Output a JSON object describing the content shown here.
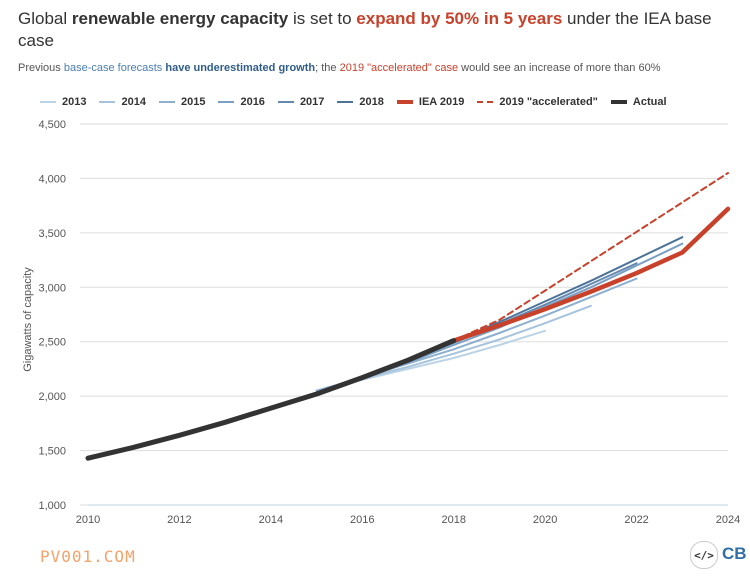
{
  "title": {
    "part1": "Global ",
    "bold1": "renewable energy capacity",
    "part2": " is set to ",
    "bold2": "expand by 50% in 5 years",
    "part3": " under the IEA base case"
  },
  "subtitle": {
    "part1": "Previous ",
    "blue1": "base-case forecasts",
    "blue2": "have underestimated growth",
    "part2": "; the ",
    "red1": "2019 \"accelerated\" case",
    "part3": "  would see an increase of more than 60%"
  },
  "footer": {
    "brand": "PV001.COM",
    "code_logo": "</>",
    "cb_logo": "CB"
  },
  "colors": {
    "f2013": "#bcd3e6",
    "f2014": "#a6c3dd",
    "f2015": "#8db0d1",
    "f2016": "#7a9fc4",
    "f2017": "#6389b1",
    "f2018": "#4d7399",
    "iea2019": "#c8412b",
    "accelerated": "#c8412b",
    "actual": "#333333"
  },
  "chart_data": {
    "type": "line",
    "ylabel": "Gigawatts of capacity",
    "xlim": [
      2010,
      2024
    ],
    "ylim": [
      1000,
      4500
    ],
    "x_ticks": [
      2010,
      2012,
      2014,
      2016,
      2018,
      2020,
      2022,
      2024
    ],
    "y_ticks": [
      1000,
      1500,
      2000,
      2500,
      3000,
      3500,
      4000,
      4500
    ],
    "y_tick_labels": [
      "1,000",
      "1,500",
      "2,000",
      "2,500",
      "3,000",
      "3,500",
      "4,000",
      "4,500"
    ],
    "grid": "horizontal",
    "legend_position": "top",
    "series": [
      {
        "name": "2013",
        "style": "solid",
        "x": [
          2015,
          2016,
          2017,
          2018,
          2019,
          2020
        ],
        "y": [
          2050,
          2150,
          2250,
          2350,
          2470,
          2600
        ]
      },
      {
        "name": "2014",
        "style": "solid",
        "x": [
          2015,
          2016,
          2017,
          2018,
          2019,
          2020,
          2021
        ],
        "y": [
          2050,
          2160,
          2270,
          2390,
          2520,
          2670,
          2830
        ]
      },
      {
        "name": "2015",
        "style": "solid",
        "x": [
          2015,
          2016,
          2017,
          2018,
          2019,
          2020,
          2021,
          2022
        ],
        "y": [
          2050,
          2170,
          2300,
          2430,
          2580,
          2740,
          2910,
          3080
        ]
      },
      {
        "name": "2016",
        "style": "solid",
        "x": [
          2016,
          2017,
          2018,
          2019,
          2020,
          2021,
          2022,
          2023
        ],
        "y": [
          2170,
          2310,
          2470,
          2630,
          2820,
          3000,
          3200,
          3400
        ]
      },
      {
        "name": "2017",
        "style": "solid",
        "x": [
          2017,
          2018,
          2019,
          2020,
          2021,
          2022
        ],
        "y": [
          2330,
          2490,
          2660,
          2840,
          3030,
          3220
        ]
      },
      {
        "name": "2018",
        "style": "solid",
        "x": [
          2018,
          2019,
          2020,
          2021,
          2022,
          2023
        ],
        "y": [
          2500,
          2680,
          2870,
          3060,
          3260,
          3460
        ]
      },
      {
        "name": "IEA 2019",
        "style": "solid-thick",
        "x": [
          2018,
          2019,
          2020,
          2021,
          2022,
          2023,
          2024
        ],
        "y": [
          2510,
          2650,
          2800,
          2960,
          3130,
          3320,
          3720
        ]
      },
      {
        "name": "2019 \"accelerated\"",
        "style": "dashed",
        "x": [
          2018,
          2019,
          2020,
          2021,
          2022,
          2023,
          2024
        ],
        "y": [
          2510,
          2700,
          2970,
          3240,
          3510,
          3780,
          4050
        ]
      },
      {
        "name": "Actual",
        "style": "solid-thick",
        "x": [
          2010,
          2011,
          2012,
          2013,
          2014,
          2015,
          2016,
          2017,
          2018
        ],
        "y": [
          1430,
          1530,
          1640,
          1760,
          1890,
          2020,
          2170,
          2330,
          2510
        ]
      }
    ]
  }
}
